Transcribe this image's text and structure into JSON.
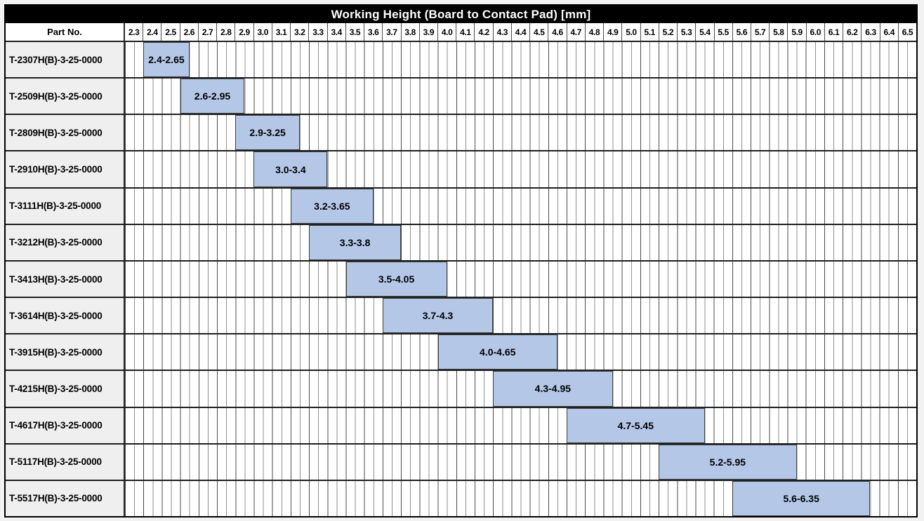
{
  "part_column_header": "Part No.",
  "colors": {
    "title_bg": "#000000",
    "title_fg": "#ffffff",
    "bar_fill": "#b4c7e7",
    "bar_border": "#3c3c3c",
    "part_cell_bg": "#efefef",
    "grid_minor": "#8f8f8f",
    "grid_major": "#4a4a4a",
    "row_line": "#1f1f1f"
  },
  "chart_data": {
    "type": "bar",
    "variant": "horizontal_range_gantt",
    "title": "Working Height (Board to Contact Pad) [mm]",
    "xlabel": "Working Height (Board to Contact Pad) [mm]",
    "ylabel": "Part No.",
    "xlim": [
      2.3,
      6.6
    ],
    "x_major_tick_step": 0.1,
    "x_minor_tick_step": 0.05,
    "grid": true,
    "legend": false,
    "x_tick_labels": [
      "2.3",
      "2.4",
      "2.5",
      "2.6",
      "2.7",
      "2.8",
      "2.9",
      "3.0",
      "3.1",
      "3.2",
      "3.3",
      "3.4",
      "3.5",
      "3.6",
      "3.7",
      "3.8",
      "3.9",
      "4.0",
      "4.1",
      "4.2",
      "4.3",
      "4.4",
      "4.5",
      "4.6",
      "4.7",
      "4.8",
      "4.9",
      "5.0",
      "5.1",
      "5.2",
      "5.3",
      "5.4",
      "5.5",
      "5.6",
      "5.7",
      "5.8",
      "5.9",
      "6.0",
      "6.1",
      "6.2",
      "6.3",
      "6.4",
      "6.5"
    ],
    "rows": [
      {
        "part_no": "T-2307H(B)-3-25-0000",
        "start": 2.4,
        "end": 2.65,
        "label": "2.4-2.65"
      },
      {
        "part_no": "T-2509H(B)-3-25-0000",
        "start": 2.6,
        "end": 2.95,
        "label": "2.6-2.95"
      },
      {
        "part_no": "T-2809H(B)-3-25-0000",
        "start": 2.9,
        "end": 3.25,
        "label": "2.9-3.25"
      },
      {
        "part_no": "T-2910H(B)-3-25-0000",
        "start": 3.0,
        "end": 3.4,
        "label": "3.0-3.4"
      },
      {
        "part_no": "T-3111H(B)-3-25-0000",
        "start": 3.2,
        "end": 3.65,
        "label": "3.2-3.65"
      },
      {
        "part_no": "T-3212H(B)-3-25-0000",
        "start": 3.3,
        "end": 3.8,
        "label": "3.3-3.8"
      },
      {
        "part_no": "T-3413H(B)-3-25-0000",
        "start": 3.5,
        "end": 4.05,
        "label": "3.5-4.05"
      },
      {
        "part_no": "T-3614H(B)-3-25-0000",
        "start": 3.7,
        "end": 4.3,
        "label": "3.7-4.3"
      },
      {
        "part_no": "T-3915H(B)-3-25-0000",
        "start": 4.0,
        "end": 4.65,
        "label": "4.0-4.65"
      },
      {
        "part_no": "T-4215H(B)-3-25-0000",
        "start": 4.3,
        "end": 4.95,
        "label": "4.3-4.95"
      },
      {
        "part_no": "T-4617H(B)-3-25-0000",
        "start": 4.7,
        "end": 5.45,
        "label": "4.7-5.45"
      },
      {
        "part_no": "T-5117H(B)-3-25-0000",
        "start": 5.2,
        "end": 5.95,
        "label": "5.2-5.95"
      },
      {
        "part_no": "T-5517H(B)-3-25-0000",
        "start": 5.6,
        "end": 6.35,
        "label": "5.6-6.35"
      }
    ]
  }
}
